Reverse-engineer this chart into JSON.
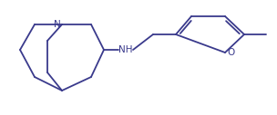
{
  "line_color": "#3a3a8c",
  "line_width": 1.3,
  "bg_color": "#ffffff",
  "font_size": 7.5,
  "label_color": "#3a3a8c",
  "figsize": [
    3.04,
    1.27
  ],
  "dpi": 100,
  "xlim": [
    0,
    304
  ],
  "ylim": [
    0,
    127
  ]
}
